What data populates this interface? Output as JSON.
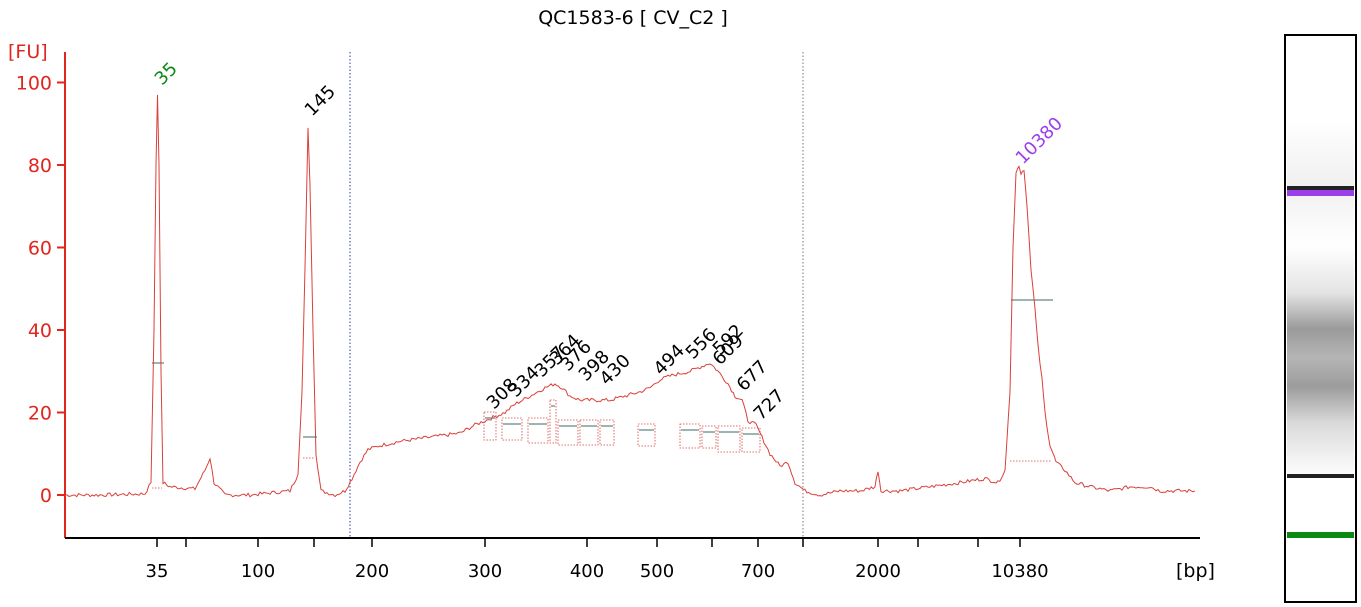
{
  "chart_data": {
    "type": "line",
    "title": "QC1583-6  [ CV_C2 ]",
    "ylabel": "[FU]",
    "xlabel": "[bp]",
    "ylim": [
      -10,
      108
    ],
    "y_ticks": [
      0,
      20,
      40,
      60,
      80,
      100
    ],
    "x_tick_labels": [
      "35",
      "100",
      "200",
      "300",
      "400",
      "500",
      "700",
      "2000",
      "10380"
    ],
    "colors": {
      "trace": "#d9403a",
      "axis_y": "#e0261e",
      "lower_marker": "#0a8a14",
      "upper_marker": "#9b3fe8",
      "text": "#000000"
    },
    "peaks": [
      {
        "label": "35",
        "type": "marker",
        "height": 97,
        "color": "#0a8a14"
      },
      {
        "label": "145",
        "type": "peak",
        "height": 89,
        "color": "#000000"
      },
      {
        "label": "308",
        "type": "peak",
        "height": 19,
        "color": "#000000"
      },
      {
        "label": "334",
        "type": "peak",
        "height": 22,
        "color": "#000000"
      },
      {
        "label": "357",
        "type": "peak",
        "height": 25,
        "color": "#000000"
      },
      {
        "label": "364",
        "type": "peak",
        "height": 26,
        "color": "#000000"
      },
      {
        "label": "376",
        "type": "peak",
        "height": 27,
        "color": "#000000"
      },
      {
        "label": "398",
        "type": "peak",
        "height": 24,
        "color": "#000000"
      },
      {
        "label": "430",
        "type": "peak",
        "height": 23,
        "color": "#000000"
      },
      {
        "label": "494",
        "type": "peak",
        "height": 27,
        "color": "#000000"
      },
      {
        "label": "556",
        "type": "peak",
        "height": 31,
        "color": "#000000"
      },
      {
        "label": "592",
        "type": "peak",
        "height": 31,
        "color": "#000000"
      },
      {
        "label": "609",
        "type": "peak",
        "height": 30,
        "color": "#000000"
      },
      {
        "label": "677",
        "type": "peak",
        "height": 24,
        "color": "#000000"
      },
      {
        "label": "727",
        "type": "peak",
        "height": 17,
        "color": "#000000"
      },
      {
        "label": "10380",
        "type": "marker",
        "height": 80,
        "color": "#9b3fe8"
      }
    ]
  }
}
